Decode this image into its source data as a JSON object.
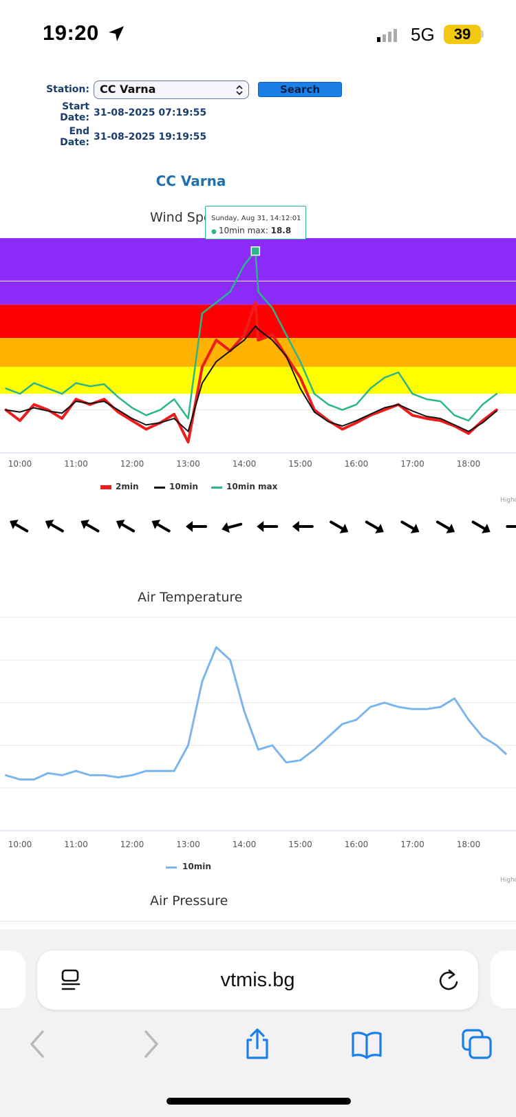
{
  "status_bar": {
    "time": "19:20",
    "network": "5G",
    "battery": "39"
  },
  "form": {
    "station_label": "Station:",
    "station_value": "CC Varna",
    "search_label": "Search",
    "start_label_1": "Start",
    "start_label_2": "Date:",
    "start_value": "31-08-2025 07:19:55",
    "end_label_1": "End",
    "end_label_2": "Date:",
    "end_value": "31-08-2025 19:19:55"
  },
  "page_heading": "CC Varna",
  "wind_chart": {
    "title": "Wind Spe",
    "tooltip": {
      "date": "Sunday, Aug 31, 14:12:01",
      "series": "10min max:",
      "value": "18.8"
    },
    "x_ticks": [
      "10:00",
      "11:00",
      "12:00",
      "13:00",
      "14:00",
      "15:00",
      "16:00",
      "17:00",
      "18:00",
      "1"
    ],
    "legend": [
      "2min",
      "10min",
      "10min max"
    ],
    "credit": "Highc",
    "band_colors": [
      "#8b2bf7",
      "#ff0000",
      "#ffb300",
      "#ffff00"
    ]
  },
  "temp_chart": {
    "title": "Air Temperature",
    "x_ticks": [
      "10:00",
      "11:00",
      "12:00",
      "13:00",
      "14:00",
      "15:00",
      "16:00",
      "17:00",
      "18:00",
      "1"
    ],
    "legend": [
      "10min"
    ],
    "credit": "Highc"
  },
  "pressure_chart": {
    "title": "Air Pressure"
  },
  "browser": {
    "url": "vtmis.bg"
  },
  "chart_data": [
    {
      "type": "line",
      "title": "Wind Spe",
      "x": [
        "09:45",
        "10:00",
        "10:15",
        "10:30",
        "10:45",
        "11:00",
        "11:15",
        "11:30",
        "11:45",
        "12:00",
        "12:15",
        "12:30",
        "12:45",
        "13:00",
        "13:15",
        "13:30",
        "13:45",
        "14:00",
        "14:12",
        "14:15",
        "14:30",
        "14:45",
        "15:00",
        "15:15",
        "15:30",
        "15:45",
        "16:00",
        "16:15",
        "16:30",
        "16:45",
        "17:00",
        "17:15",
        "17:30",
        "17:45",
        "18:00",
        "18:15",
        "18:30"
      ],
      "series": [
        {
          "name": "2min",
          "color": "#ee1c1c",
          "values": [
            4.0,
            3.0,
            4.5,
            4.0,
            3.2,
            5.0,
            4.5,
            5.0,
            3.8,
            3.0,
            2.2,
            2.8,
            3.6,
            1.0,
            8.0,
            10.5,
            9.5,
            11.0,
            14.0,
            10.5,
            11.0,
            9.0,
            7.0,
            4.0,
            3.0,
            2.2,
            2.8,
            3.5,
            4.0,
            4.5,
            3.5,
            3.2,
            3.0,
            2.5,
            1.8,
            3.0,
            4.0
          ]
        },
        {
          "name": "10min",
          "color": "#111111",
          "values": [
            4.0,
            3.8,
            4.2,
            3.9,
            3.7,
            4.8,
            4.6,
            4.8,
            4.0,
            3.2,
            2.6,
            2.8,
            3.2,
            2.0,
            6.5,
            8.5,
            9.5,
            10.5,
            11.8,
            11.5,
            10.5,
            9.0,
            6.0,
            3.8,
            2.9,
            2.5,
            3.0,
            3.6,
            4.2,
            4.5,
            3.9,
            3.4,
            3.2,
            2.6,
            2.0,
            2.8,
            3.9
          ]
        },
        {
          "name": "10min max",
          "color": "#2bb58a",
          "values": [
            6.0,
            5.5,
            6.5,
            6.0,
            5.5,
            6.5,
            6.2,
            6.4,
            5.2,
            4.2,
            3.5,
            4.0,
            5.0,
            3.2,
            13.0,
            14.0,
            15.0,
            17.5,
            18.8,
            15.0,
            13.5,
            11.0,
            8.5,
            5.5,
            4.5,
            4.0,
            4.5,
            6.0,
            7.0,
            7.5,
            5.5,
            5.0,
            4.8,
            3.5,
            3.0,
            4.5,
            5.5
          ]
        }
      ],
      "bands": [
        {
          "from": 13.8,
          "to": 20,
          "color": "#8b2bf7"
        },
        {
          "from": 10.7,
          "to": 13.8,
          "color": "#ff0000"
        },
        {
          "from": 8.0,
          "to": 10.7,
          "color": "#ffb300"
        },
        {
          "from": 5.5,
          "to": 8.0,
          "color": "#ffff00"
        }
      ],
      "ylim": [
        0,
        20
      ],
      "grid": true,
      "legend_position": "bottom-center",
      "wind_direction_arrows_deg": [
        300,
        300,
        300,
        300,
        300,
        270,
        255,
        270,
        270,
        120,
        120,
        120,
        120,
        120,
        90,
        120,
        120
      ]
    },
    {
      "type": "line",
      "title": "Air Temperature",
      "x": [
        "09:45",
        "10:00",
        "10:15",
        "10:30",
        "10:45",
        "11:00",
        "11:15",
        "11:30",
        "11:45",
        "12:00",
        "12:15",
        "12:30",
        "12:45",
        "13:00",
        "13:15",
        "13:30",
        "13:45",
        "14:00",
        "14:15",
        "14:30",
        "14:45",
        "15:00",
        "15:15",
        "15:30",
        "15:45",
        "16:00",
        "16:15",
        "16:30",
        "16:45",
        "17:00",
        "17:15",
        "17:30",
        "17:45",
        "18:00",
        "18:15",
        "18:30",
        "18:40"
      ],
      "series": [
        {
          "name": "10min",
          "color": "#7cb5ec",
          "values": [
            25.3,
            25.2,
            25.2,
            25.35,
            25.3,
            25.4,
            25.3,
            25.3,
            25.25,
            25.3,
            25.4,
            25.4,
            25.4,
            26.0,
            27.5,
            28.3,
            28.0,
            26.8,
            25.9,
            26.0,
            25.6,
            25.65,
            25.9,
            26.2,
            26.5,
            26.6,
            26.9,
            27.0,
            26.9,
            26.85,
            26.85,
            26.9,
            27.1,
            26.6,
            26.2,
            26.0,
            25.8
          ]
        }
      ],
      "ylim": [
        24,
        29
      ],
      "grid": true,
      "legend_position": "bottom-center"
    }
  ]
}
